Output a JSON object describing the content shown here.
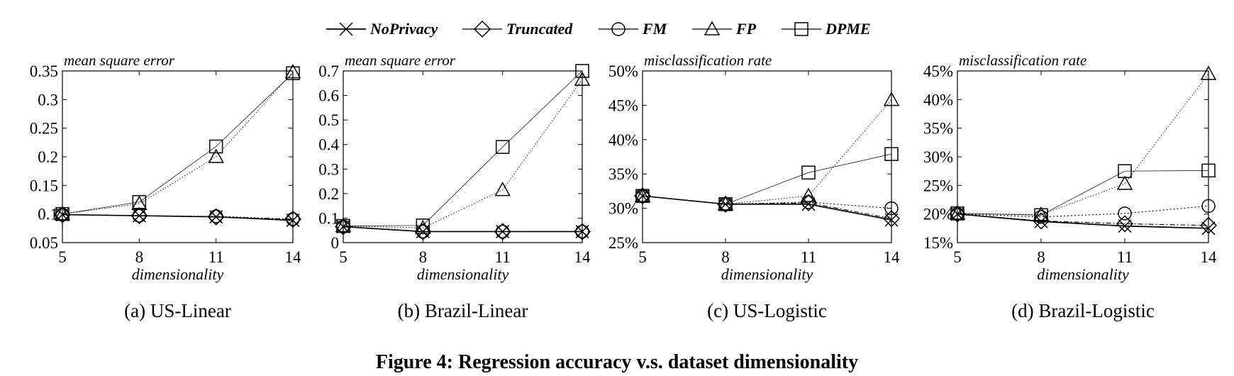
{
  "legend": [
    {
      "name": "NoPrivacy",
      "marker": "x"
    },
    {
      "name": "Truncated",
      "marker": "diamond"
    },
    {
      "name": "FM",
      "marker": "circle"
    },
    {
      "name": "FP",
      "marker": "triangle"
    },
    {
      "name": "DPME",
      "marker": "square"
    }
  ],
  "figure_caption": "Figure 4: Regression accuracy v.s. dataset dimensionality",
  "chart_data": [
    {
      "type": "line",
      "subcaption": "(a) US-Linear",
      "ylabel": "mean square error",
      "xlabel": "dimensionality",
      "x": [
        5,
        8,
        11,
        14
      ],
      "x_ticks": [
        "5",
        "8",
        "11",
        "14"
      ],
      "ylim": [
        0.05,
        0.35
      ],
      "y_ticks": [
        0.05,
        0.1,
        0.15,
        0.2,
        0.25,
        0.3,
        0.35
      ],
      "y_tick_labels": [
        "0.05",
        "0.1",
        "0.15",
        "0.2",
        "0.25",
        "0.3",
        "0.35"
      ],
      "series": [
        {
          "name": "NoPrivacy",
          "values": [
            0.099,
            0.097,
            0.095,
            0.089
          ]
        },
        {
          "name": "Truncated",
          "values": [
            0.099,
            0.097,
            0.095,
            0.091
          ]
        },
        {
          "name": "FM",
          "values": [
            0.099,
            0.097,
            0.096,
            0.091
          ]
        },
        {
          "name": "FP",
          "values": [
            0.1,
            0.118,
            0.2,
            0.348
          ]
        },
        {
          "name": "DPME",
          "values": [
            0.1,
            0.121,
            0.218,
            0.346
          ]
        }
      ]
    },
    {
      "type": "line",
      "subcaption": "(b) Brazil-Linear",
      "ylabel": "mean square error",
      "xlabel": "dimensionality",
      "x": [
        5,
        8,
        11,
        14
      ],
      "x_ticks": [
        "5",
        "8",
        "11",
        "14"
      ],
      "ylim": [
        0,
        0.7
      ],
      "y_ticks": [
        0,
        0.1,
        0.2,
        0.3,
        0.4,
        0.5,
        0.6,
        0.7
      ],
      "y_tick_labels": [
        "0",
        "0.1",
        "0.2",
        "0.3",
        "0.4",
        "0.5",
        "0.6",
        "0.7"
      ],
      "series": [
        {
          "name": "NoPrivacy",
          "values": [
            0.065,
            0.045,
            0.045,
            0.045
          ]
        },
        {
          "name": "Truncated",
          "values": [
            0.065,
            0.045,
            0.045,
            0.045
          ]
        },
        {
          "name": "FM",
          "values": [
            0.065,
            0.045,
            0.045,
            0.045
          ]
        },
        {
          "name": "FP",
          "values": [
            0.068,
            0.06,
            0.215,
            0.665
          ]
        },
        {
          "name": "DPME",
          "values": [
            0.068,
            0.07,
            0.39,
            0.7
          ]
        }
      ]
    },
    {
      "type": "line",
      "subcaption": "(c) US-Logistic",
      "ylabel": "misclassification rate",
      "xlabel": "dimensionality",
      "x": [
        5,
        8,
        11,
        14
      ],
      "x_ticks": [
        "5",
        "8",
        "11",
        "14"
      ],
      "ylim": [
        25,
        50
      ],
      "y_ticks": [
        25,
        30,
        35,
        40,
        45,
        50
      ],
      "y_tick_labels": [
        "25%",
        "30%",
        "35%",
        "40%",
        "45%",
        "50%"
      ],
      "series": [
        {
          "name": "NoPrivacy",
          "values": [
            31.8,
            30.6,
            30.6,
            28.3
          ]
        },
        {
          "name": "Truncated",
          "values": [
            31.8,
            30.6,
            30.8,
            28.5
          ]
        },
        {
          "name": "FM",
          "values": [
            31.8,
            30.6,
            30.9,
            30.0
          ]
        },
        {
          "name": "FP",
          "values": [
            31.8,
            30.6,
            31.8,
            45.8
          ]
        },
        {
          "name": "DPME",
          "values": [
            31.8,
            30.6,
            35.2,
            37.9
          ]
        }
      ]
    },
    {
      "type": "line",
      "subcaption": "(d) Brazil-Logistic",
      "ylabel": "misclassification rate",
      "xlabel": "dimensionality",
      "x": [
        5,
        8,
        11,
        14
      ],
      "x_ticks": [
        "5",
        "8",
        "11",
        "14"
      ],
      "ylim": [
        15,
        45
      ],
      "y_ticks": [
        15,
        20,
        25,
        30,
        35,
        40,
        45
      ],
      "y_tick_labels": [
        "15%",
        "20%",
        "25%",
        "30%",
        "35%",
        "40%",
        "45%"
      ],
      "series": [
        {
          "name": "NoPrivacy",
          "values": [
            20.0,
            18.7,
            17.9,
            17.5
          ]
        },
        {
          "name": "Truncated",
          "values": [
            20.0,
            18.8,
            18.3,
            18.0
          ]
        },
        {
          "name": "FM",
          "values": [
            20.0,
            19.5,
            20.1,
            21.4
          ]
        },
        {
          "name": "FP",
          "values": [
            20.1,
            19.9,
            25.3,
            44.5
          ]
        },
        {
          "name": "DPME",
          "values": [
            20.1,
            19.8,
            27.5,
            27.6
          ]
        }
      ]
    }
  ]
}
